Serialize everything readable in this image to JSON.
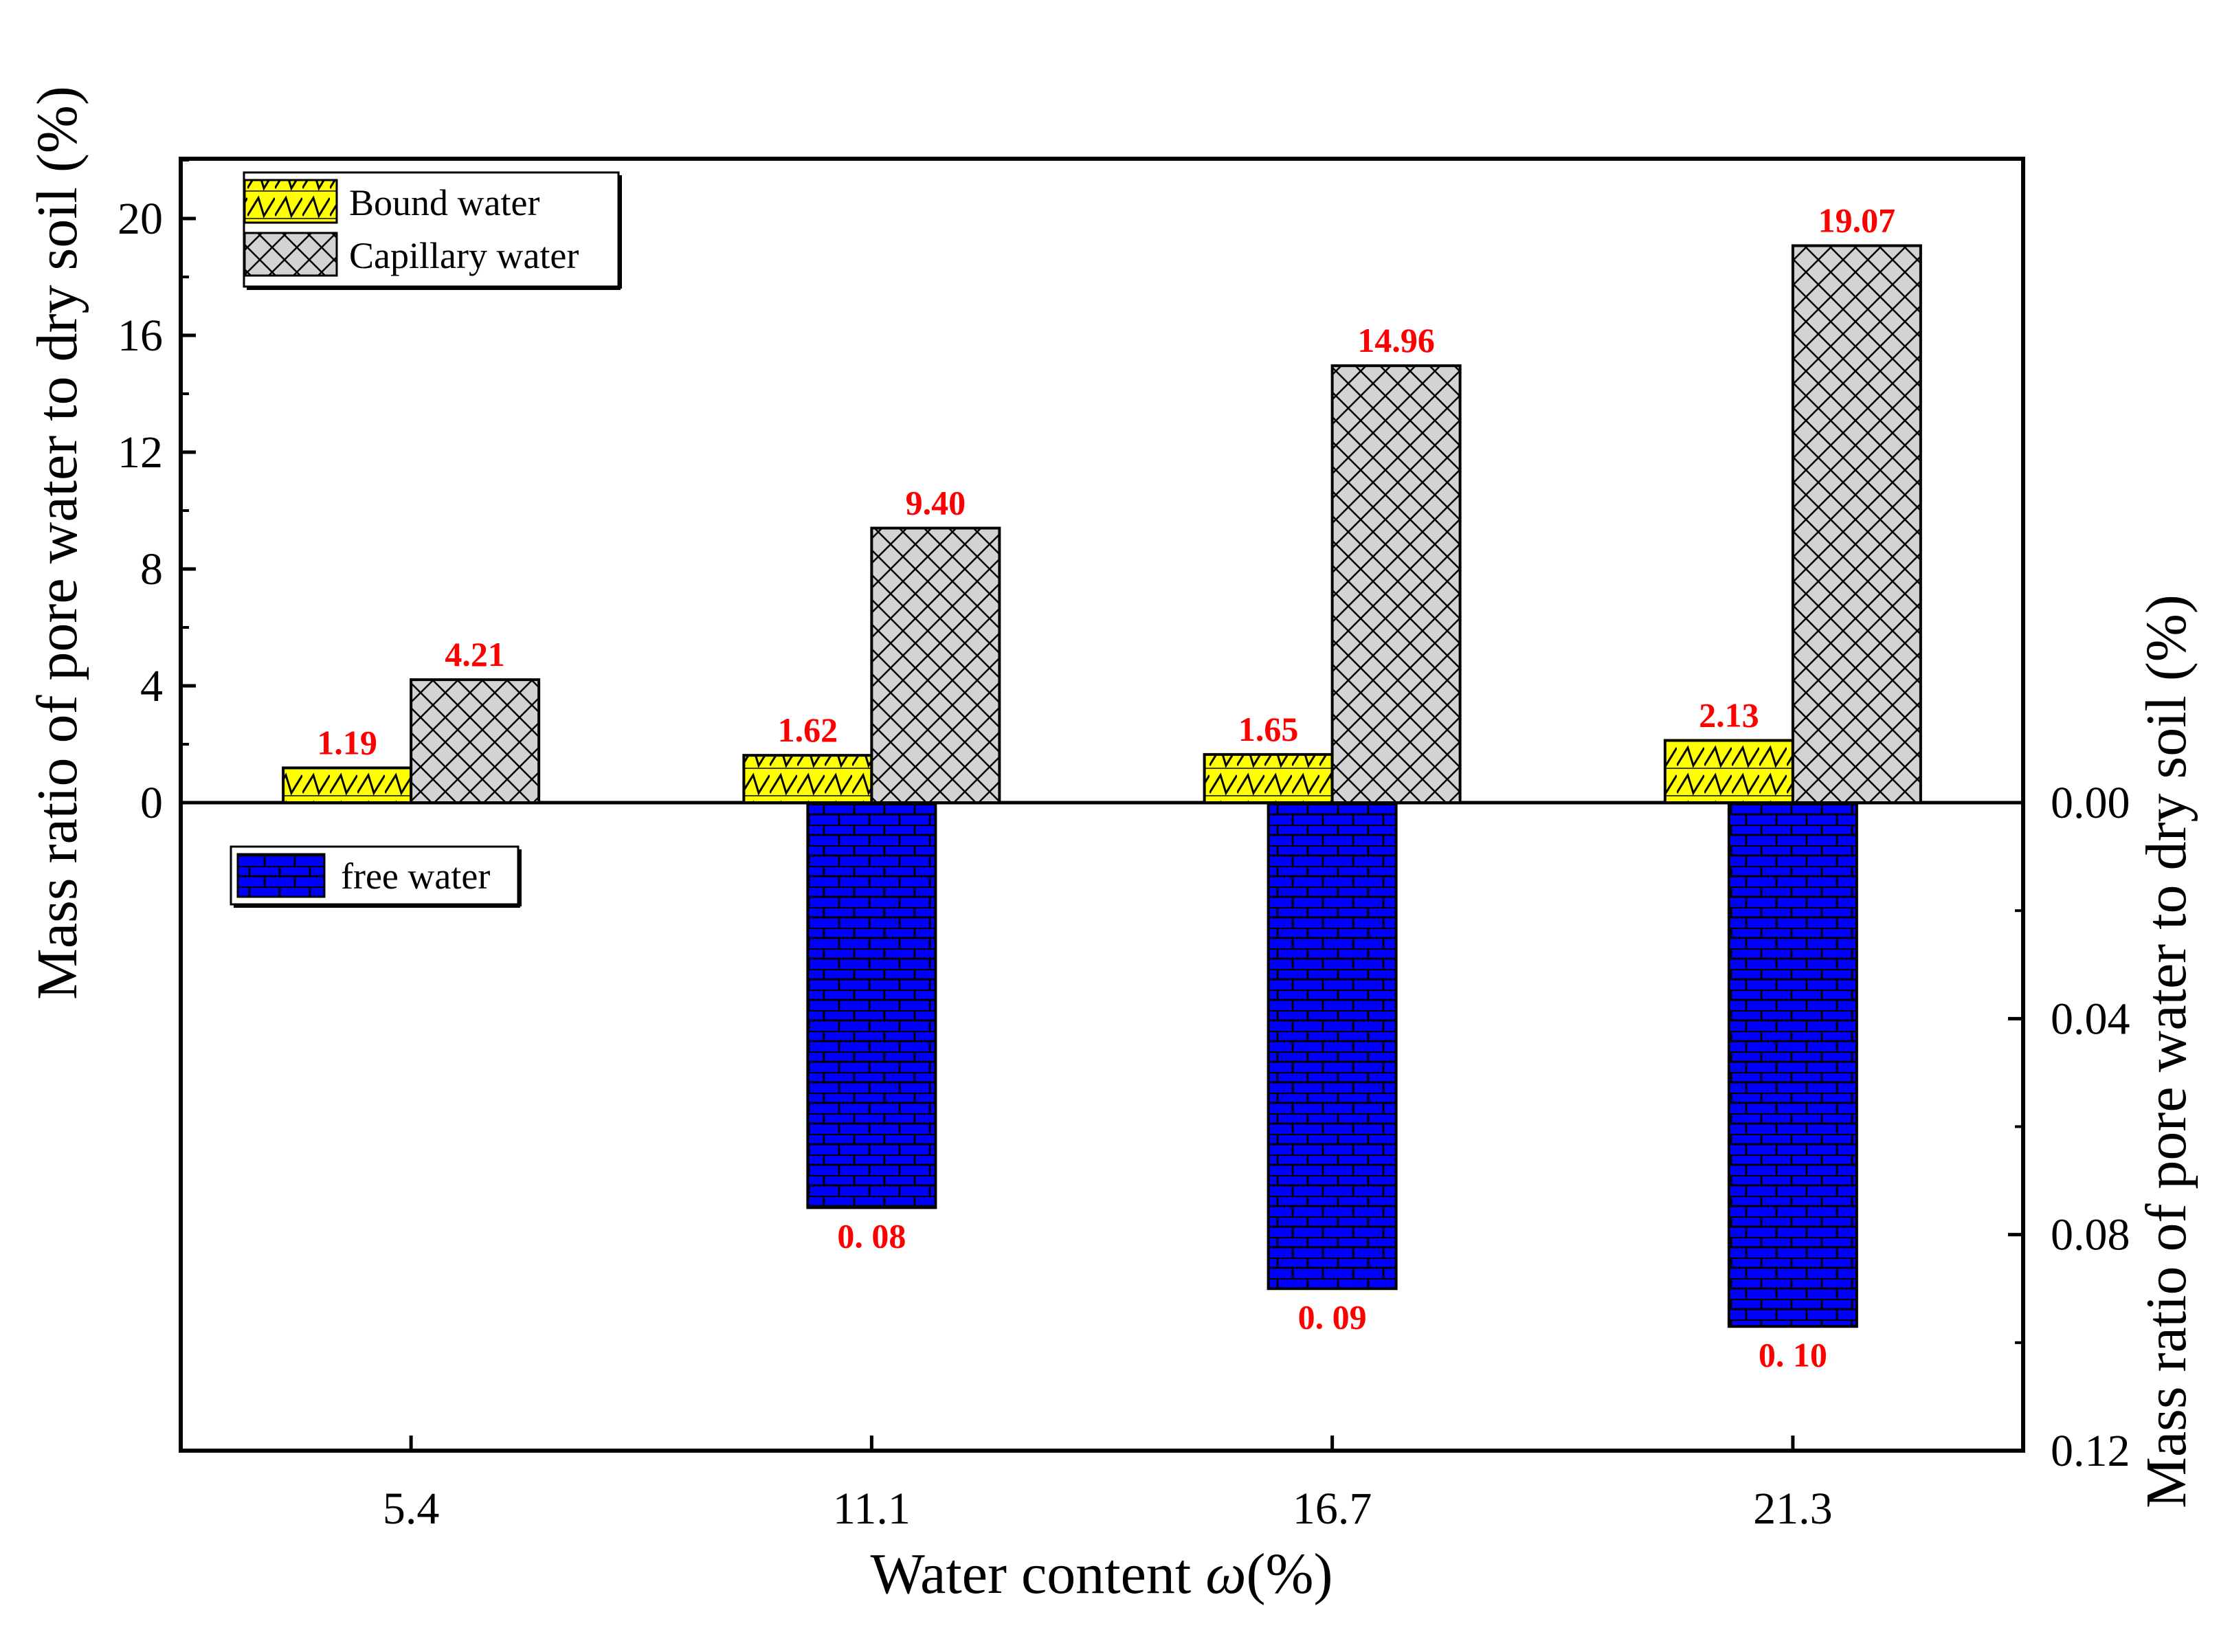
{
  "chart_data": {
    "type": "bar",
    "categories": [
      "5.4",
      "11.1",
      "16.7",
      "21.3"
    ],
    "xlabel_text": "Water content ",
    "xlabel_symbol": "ω",
    "xlabel_unit": "(%)",
    "ylabel_left": "Mass ratio of pore water to dry soil (%)",
    "ylabel_right": "Mass ratio of pore water to dry soil (%)",
    "left_axis": {
      "ylim": [
        0,
        22
      ],
      "ticks": [
        0,
        4,
        8,
        12,
        16,
        20
      ],
      "tick_labels": [
        "0",
        "4",
        "8",
        "12",
        "16",
        "20"
      ]
    },
    "right_axis": {
      "ylim": [
        0,
        0.12
      ],
      "inverted": true,
      "ticks": [
        0,
        0.04,
        0.08,
        0.12
      ],
      "tick_labels": [
        "0.00",
        "0.04",
        "0.08",
        "0.12"
      ]
    },
    "series": [
      {
        "name": "Bound water",
        "axis": "left",
        "color": "#ffff00",
        "pattern": "zigzag",
        "values": [
          1.19,
          1.62,
          1.65,
          2.13
        ],
        "labels": [
          "1.19",
          "1.62",
          "1.65",
          "2.13"
        ]
      },
      {
        "name": "Capillary water",
        "axis": "left",
        "color": "#d3d3d3",
        "pattern": "crosshatch",
        "values": [
          4.21,
          9.4,
          14.96,
          19.07
        ],
        "labels": [
          "4.21",
          "9.40",
          "14.96",
          "19.07"
        ]
      },
      {
        "name": "free water",
        "axis": "right",
        "color": "#0000ff",
        "pattern": "brick",
        "values": [
          null,
          0.075,
          0.09,
          0.097
        ],
        "labels": [
          "",
          "0. 08",
          "0. 09",
          "0. 10"
        ]
      }
    ],
    "legend_upper": [
      "Bound water",
      "Capillary water"
    ],
    "legend_lower": [
      "free water"
    ],
    "value_label_color": "#ff0000"
  }
}
